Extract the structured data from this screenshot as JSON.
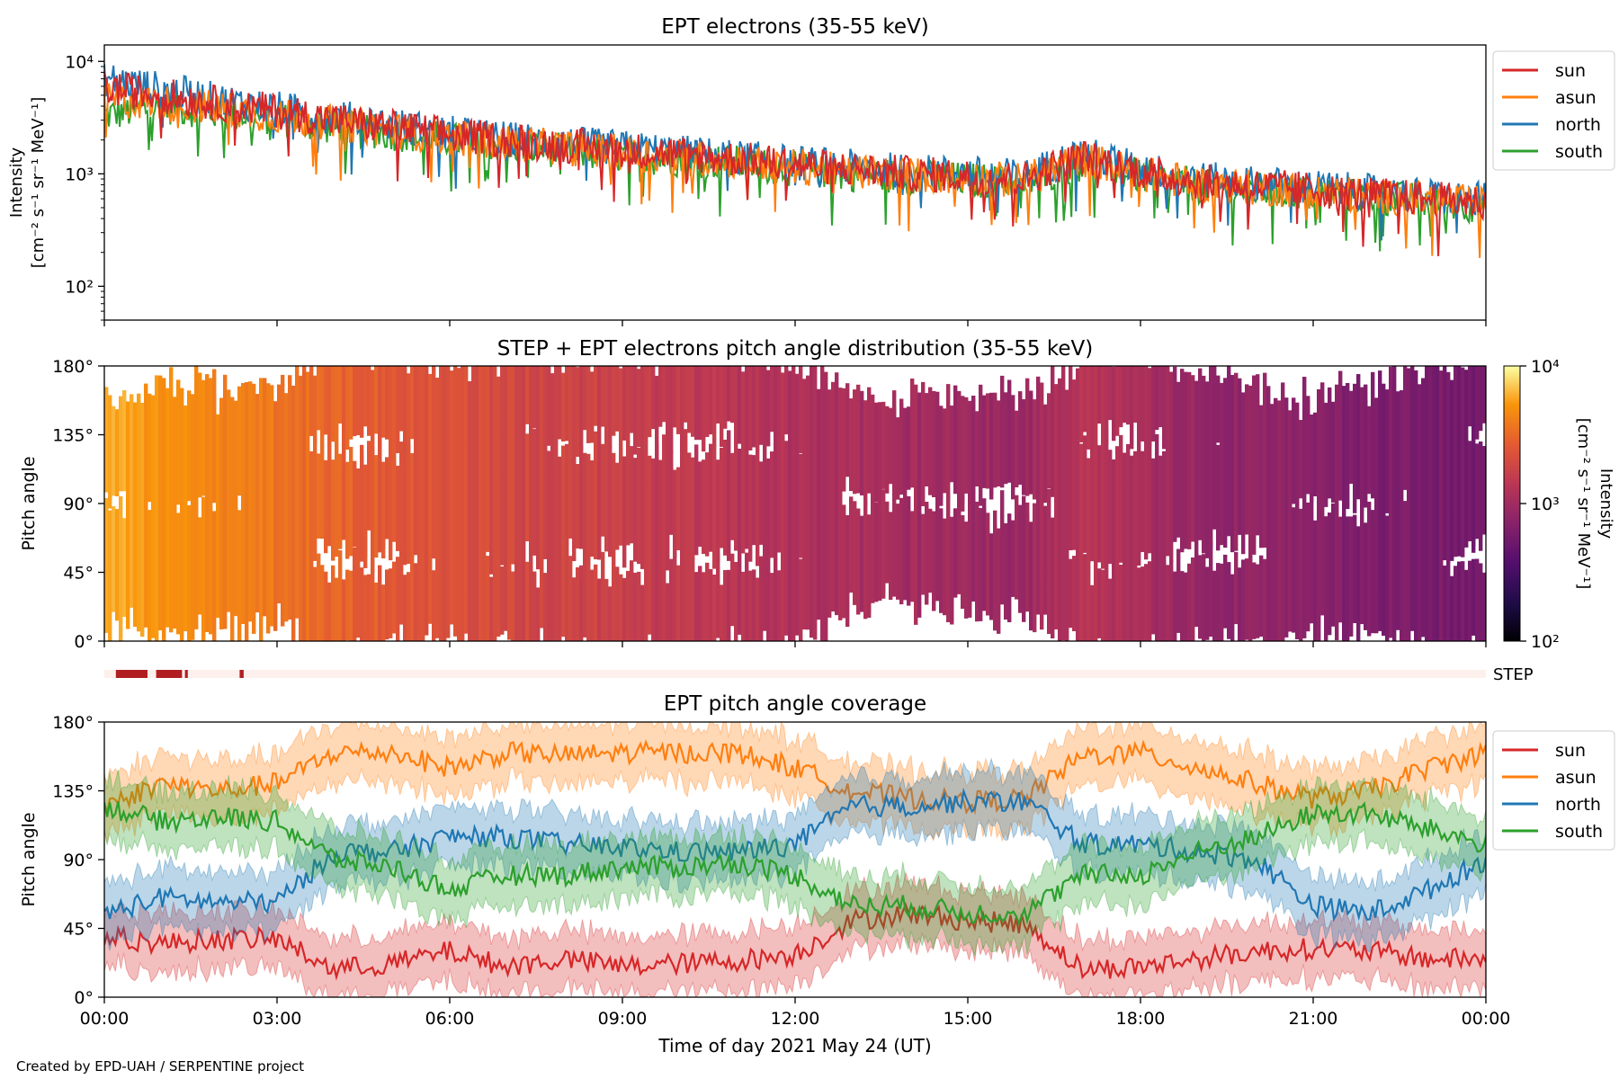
{
  "figure": {
    "credit": "Created by EPD-UAH / SERPENTINE project",
    "xlabel": "Time of day 2021 May 24 (UT)",
    "x_ticks": [
      "00:00",
      "03:00",
      "06:00",
      "09:00",
      "12:00",
      "15:00",
      "18:00",
      "21:00",
      "00:00"
    ]
  },
  "colors": {
    "sun": "#d62728",
    "asun": "#ff7f0e",
    "north": "#1f77b4",
    "south": "#2ca02c",
    "step_bar": "#b01e22",
    "step_bg": "#fdf0ec"
  },
  "chart_data": [
    {
      "type": "line",
      "title": "EPT electrons (35-55 keV)",
      "ylabel": "Intensity",
      "yunit": "[cm⁻² s⁻¹ sr⁻¹ MeV⁻¹]",
      "yscale": "log",
      "ylim": [
        50,
        14000
      ],
      "y_ticks": [
        "10²",
        "10³",
        "10⁴"
      ],
      "legend_position": "outside-right",
      "x_hours": [
        0,
        1,
        2,
        3,
        4,
        5,
        6,
        7,
        8,
        9,
        10,
        11,
        12,
        13,
        14,
        15,
        16,
        17,
        18,
        19,
        20,
        21,
        22,
        23,
        24
      ],
      "series": [
        {
          "name": "sun",
          "values": [
            5800,
            5000,
            4200,
            3600,
            3000,
            2600,
            2200,
            2000,
            1800,
            1650,
            1500,
            1350,
            1200,
            1100,
            1000,
            950,
            900,
            1400,
            1050,
            850,
            780,
            720,
            650,
            600,
            550
          ]
        },
        {
          "name": "asun",
          "values": [
            4500,
            4300,
            3800,
            3300,
            2800,
            2450,
            2100,
            1900,
            1700,
            1550,
            1400,
            1300,
            1150,
            1050,
            980,
            920,
            870,
            1350,
            1000,
            820,
            750,
            700,
            640,
            590,
            540
          ]
        },
        {
          "name": "north",
          "values": [
            7000,
            5600,
            4500,
            3800,
            3200,
            2700,
            2300,
            2050,
            1850,
            1700,
            1550,
            1400,
            1250,
            1150,
            1050,
            1000,
            950,
            1500,
            1100,
            900,
            820,
            760,
            690,
            630,
            580
          ]
        },
        {
          "name": "south",
          "values": [
            3300,
            4000,
            3500,
            3100,
            2600,
            2300,
            2000,
            1800,
            1600,
            1450,
            1350,
            1250,
            1100,
            1000,
            940,
            880,
            830,
            1250,
            950,
            780,
            720,
            680,
            620,
            570,
            520
          ]
        }
      ]
    },
    {
      "type": "heatmap",
      "title": "STEP + EPT electrons pitch angle distribution (35-55 keV)",
      "ylabel": "Pitch angle",
      "y_ticks": [
        "0°",
        "45°",
        "90°",
        "135°",
        "180°"
      ],
      "ylim": [
        0,
        180
      ],
      "colorbar_label": "Intensity",
      "colorbar_unit": "[cm⁻² s⁻¹ sr⁻¹ MeV⁻¹]",
      "colorbar_ticks": [
        "10²",
        "10³",
        "10⁴"
      ],
      "colorbar_range": [
        100,
        10000
      ],
      "colormap": "inferno",
      "x_hours": [
        0,
        1,
        2,
        3,
        4,
        5,
        6,
        7,
        8,
        9,
        10,
        11,
        12,
        13,
        14,
        15,
        16,
        17,
        18,
        19,
        20,
        21,
        22,
        23,
        24
      ],
      "intensity": [
        5800,
        5000,
        4200,
        3600,
        3000,
        2600,
        2200,
        2000,
        1800,
        1650,
        1500,
        1350,
        1200,
        1100,
        1000,
        950,
        900,
        1400,
        1050,
        850,
        780,
        720,
        650,
        600,
        550
      ]
    },
    {
      "type": "bar",
      "label": "STEP",
      "coverage_intervals_hours": [
        [
          0.2,
          0.75
        ],
        [
          0.9,
          1.35
        ],
        [
          1.4,
          1.45
        ],
        [
          2.35,
          2.42
        ]
      ]
    },
    {
      "type": "area",
      "title": "EPT pitch angle coverage",
      "ylabel": "Pitch angle",
      "y_ticks": [
        "0°",
        "45°",
        "90°",
        "135°",
        "180°"
      ],
      "ylim": [
        0,
        180
      ],
      "legend_position": "outside-right",
      "x_hours": [
        0,
        1,
        2,
        3,
        4,
        5,
        6,
        7,
        8,
        9,
        10,
        11,
        12,
        13,
        14,
        15,
        16,
        17,
        18,
        19,
        20,
        21,
        22,
        23,
        24
      ],
      "series": [
        {
          "name": "sun",
          "values": [
            40,
            35,
            38,
            38,
            18,
            22,
            30,
            20,
            25,
            20,
            22,
            24,
            28,
            50,
            55,
            50,
            48,
            18,
            20,
            25,
            30,
            32,
            30,
            25,
            25
          ]
        },
        {
          "name": "asun",
          "values": [
            125,
            140,
            135,
            140,
            160,
            160,
            150,
            160,
            158,
            160,
            160,
            160,
            150,
            135,
            130,
            128,
            130,
            158,
            160,
            150,
            140,
            130,
            135,
            150,
            160
          ]
        },
        {
          "name": "north",
          "values": [
            55,
            65,
            62,
            62,
            95,
            95,
            105,
            105,
            100,
            98,
            95,
            95,
            100,
            125,
            125,
            128,
            128,
            100,
            100,
            95,
            90,
            60,
            55,
            70,
            90
          ]
        },
        {
          "name": "south",
          "values": [
            125,
            115,
            118,
            115,
            90,
            85,
            70,
            80,
            80,
            85,
            85,
            88,
            80,
            60,
            60,
            55,
            55,
            80,
            80,
            95,
            105,
            120,
            120,
            110,
            100
          ]
        }
      ]
    }
  ]
}
